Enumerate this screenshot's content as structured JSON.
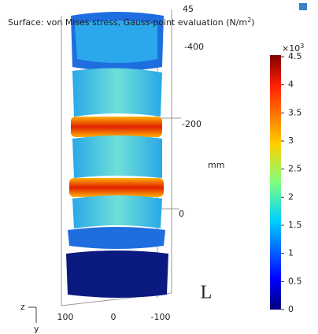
{
  "title_parts": [
    "Surface: von Mises stress, Gauss-point evaluation (N/m",
    "2",
    ")"
  ],
  "colorbar": {
    "multiplier_base": "×10",
    "multiplier_exponent": "3",
    "range": [
      0,
      4.5
    ],
    "ticks": [
      0,
      0.5,
      1,
      1.5,
      2,
      2.5,
      3,
      3.5,
      4,
      4.5
    ]
  },
  "axes": {
    "z_labels": [
      "45",
      "-400",
      "-200",
      "0"
    ],
    "z_unit": "mm",
    "x_labels": [
      "100",
      "0",
      "-100"
    ]
  },
  "view_label": "L",
  "triad": {
    "horizontal": "z",
    "vertical": "y"
  }
}
